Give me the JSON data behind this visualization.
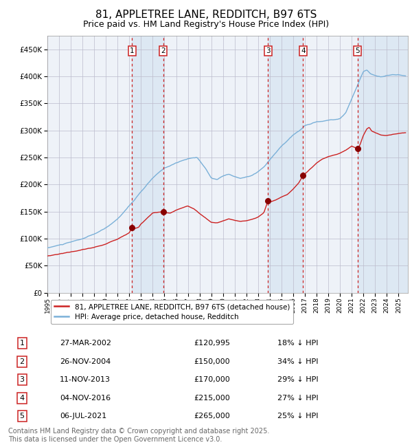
{
  "title": "81, APPLETREE LANE, REDDITCH, B97 6TS",
  "subtitle": "Price paid vs. HM Land Registry's House Price Index (HPI)",
  "title_fontsize": 11,
  "subtitle_fontsize": 9,
  "background_color": "#ffffff",
  "plot_bg_color": "#eef2f8",
  "grid_color": "#bbbbcc",
  "hpi_line_color": "#7ab0d8",
  "price_line_color": "#cc2222",
  "dashed_line_color": "#cc2222",
  "marker_color": "#880000",
  "ylim": [
    0,
    475000
  ],
  "yticks": [
    0,
    50000,
    100000,
    150000,
    200000,
    250000,
    300000,
    350000,
    400000,
    450000
  ],
  "ytick_labels": [
    "£0",
    "£50K",
    "£100K",
    "£150K",
    "£200K",
    "£250K",
    "£300K",
    "£350K",
    "£400K",
    "£450K"
  ],
  "xlim_start": 1995.0,
  "xlim_end": 2025.8,
  "xticks": [
    1995,
    1996,
    1997,
    1998,
    1999,
    2000,
    2001,
    2002,
    2003,
    2004,
    2005,
    2006,
    2007,
    2008,
    2009,
    2010,
    2011,
    2012,
    2013,
    2014,
    2015,
    2016,
    2017,
    2018,
    2019,
    2020,
    2021,
    2022,
    2023,
    2024,
    2025
  ],
  "transactions": [
    {
      "id": 1,
      "date_str": "27-MAR-2002",
      "year": 2002.23,
      "price": 120995,
      "pct": "18%",
      "label": "27-MAR-2002",
      "price_label": "£120,995"
    },
    {
      "id": 2,
      "date_str": "26-NOV-2004",
      "year": 2004.9,
      "price": 150000,
      "pct": "34%",
      "label": "26-NOV-2004",
      "price_label": "£150,000"
    },
    {
      "id": 3,
      "date_str": "11-NOV-2013",
      "year": 2013.86,
      "price": 170000,
      "pct": "29%",
      "label": "11-NOV-2013",
      "price_label": "£170,000"
    },
    {
      "id": 4,
      "date_str": "04-NOV-2016",
      "year": 2016.84,
      "price": 215000,
      "pct": "27%",
      "label": "04-NOV-2016",
      "price_label": "£215,000"
    },
    {
      "id": 5,
      "date_str": "06-JUL-2021",
      "year": 2021.51,
      "price": 265000,
      "pct": "25%",
      "label": "06-JUL-2021",
      "price_label": "£265,000"
    }
  ],
  "legend_entries": [
    "81, APPLETREE LANE, REDDITCH, B97 6TS (detached house)",
    "HPI: Average price, detached house, Redditch"
  ],
  "footer_text": "Contains HM Land Registry data © Crown copyright and database right 2025.\nThis data is licensed under the Open Government Licence v3.0.",
  "footer_fontsize": 7
}
